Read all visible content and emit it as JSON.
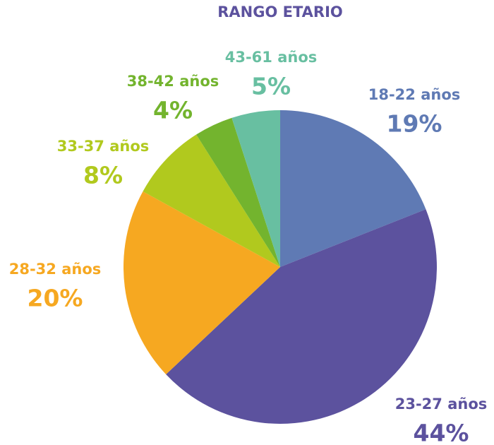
{
  "chart_data": {
    "type": "pie",
    "title": "RANGO ETARIO",
    "categories": [
      "18-22 años",
      "23-27 años",
      "28-32 años",
      "33-37 años",
      "38-42 años",
      "43-61 años"
    ],
    "values": [
      19,
      44,
      20,
      8,
      4,
      5
    ],
    "value_labels": [
      "19%",
      "44%",
      "20%",
      "8%",
      "4%",
      "5%"
    ],
    "colors": [
      "#5f7ab4",
      "#5c529e",
      "#f6a821",
      "#b1c91e",
      "#73b42e",
      "#68bfa1"
    ]
  }
}
